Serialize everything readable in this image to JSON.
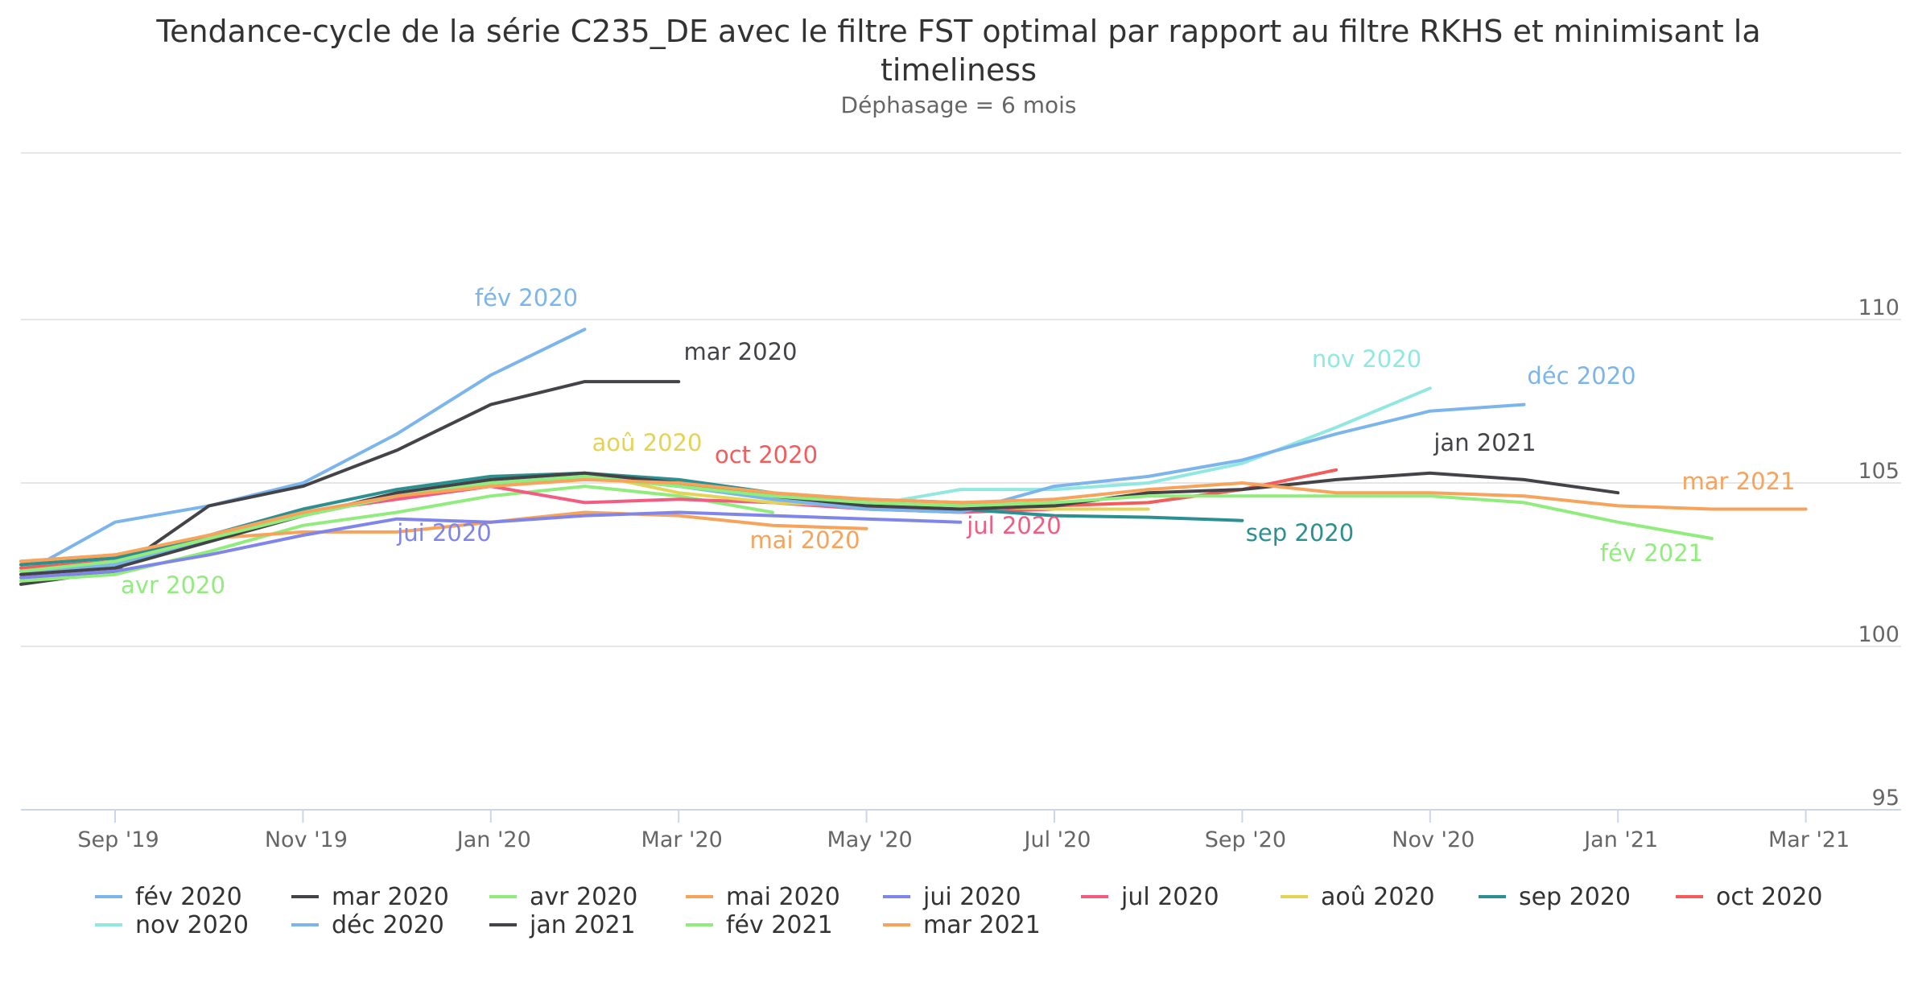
{
  "chart_data": {
    "type": "line",
    "title": "Tendance-cycle de la série C235_DE avec le filtre FST optimal par rapport au filtre RKHS et minimisant la timeliness",
    "subtitle": "Déphasage = 6 mois",
    "ylim": [
      95,
      112
    ],
    "yticks": [
      "95",
      "100",
      "105",
      "110"
    ],
    "x_categories": [
      "2019-08",
      "2019-09",
      "2019-10",
      "2019-11",
      "2019-12",
      "2020-01",
      "2020-02",
      "2020-03",
      "2020-04",
      "2020-05",
      "2020-06",
      "2020-07",
      "2020-08",
      "2020-09",
      "2020-10",
      "2020-11",
      "2020-12",
      "2021-01",
      "2021-02",
      "2021-03",
      "2021-04"
    ],
    "xtick_labels": [
      "Sep '19",
      "Nov '19",
      "Jan '20",
      "Mar '20",
      "May '20",
      "Jul '20",
      "Sep '20",
      "Nov '20",
      "Jan '21",
      "Mar '21"
    ],
    "xtick_months": [
      "2019-09",
      "2019-11",
      "2020-01",
      "2020-03",
      "2020-05",
      "2020-07",
      "2020-09",
      "2020-11",
      "2021-01",
      "2021-03"
    ],
    "grid": true,
    "legend_position": "bottom",
    "series": [
      {
        "name": "fév 2020",
        "color": "#7cb5ec",
        "start": "2019-08",
        "values": [
          102.2,
          103.8,
          104.3,
          105.0,
          106.5,
          108.3,
          109.7
        ]
      },
      {
        "name": "mar 2020",
        "color": "#434348",
        "start": "2019-08",
        "values": [
          101.9,
          102.3,
          104.3,
          104.9,
          106.0,
          107.4,
          108.1,
          108.1
        ]
      },
      {
        "name": "avr 2020",
        "color": "#90ed7d",
        "start": "2019-08",
        "values": [
          102.0,
          102.2,
          102.9,
          103.7,
          104.1,
          104.6,
          104.9,
          104.6,
          104.1
        ]
      },
      {
        "name": "mai 2020",
        "color": "#f7a35c",
        "start": "2019-08",
        "values": [
          102.6,
          102.8,
          103.3,
          103.5,
          103.5,
          103.8,
          104.1,
          104.0,
          103.7,
          103.6
        ]
      },
      {
        "name": "jui 2020",
        "color": "#8085e9",
        "start": "2019-08",
        "values": [
          102.1,
          102.3,
          102.8,
          103.4,
          103.9,
          103.8,
          104.0,
          104.1,
          104.0,
          103.9,
          103.8
        ]
      },
      {
        "name": "jul 2020",
        "color": "#f15c80",
        "start": "2019-08",
        "values": [
          102.3,
          102.5,
          103.2,
          104.1,
          104.5,
          104.9,
          104.4,
          104.5,
          104.4,
          104.2,
          104.1,
          104.2
        ]
      },
      {
        "name": "aoû 2020",
        "color": "#e4d354",
        "start": "2019-08",
        "values": [
          102.5,
          102.8,
          103.4,
          104.0,
          104.6,
          105.1,
          105.3,
          104.7,
          104.4,
          104.3,
          104.3,
          104.2,
          104.2
        ]
      },
      {
        "name": "sep 2020",
        "color": "#2b908f",
        "start": "2019-08",
        "values": [
          102.5,
          102.7,
          103.4,
          104.2,
          104.8,
          105.2,
          105.3,
          105.1,
          104.7,
          104.3,
          104.2,
          104.0,
          103.95,
          103.85
        ]
      },
      {
        "name": "oct 2020",
        "color": "#f45b5b",
        "start": "2019-08",
        "values": [
          102.4,
          102.6,
          103.3,
          104.0,
          104.6,
          105.0,
          105.2,
          105.0,
          104.6,
          104.5,
          104.4,
          104.3,
          104.4,
          104.8,
          105.4
        ]
      },
      {
        "name": "nov 2020",
        "color": "#91e8e1",
        "start": "2019-08",
        "values": [
          102.3,
          102.5,
          103.2,
          104.0,
          104.6,
          105.0,
          105.2,
          104.9,
          104.5,
          104.3,
          104.8,
          104.8,
          105.0,
          105.6,
          106.7,
          107.9
        ]
      },
      {
        "name": "déc 2020",
        "color": "#7cb5ec",
        "start": "2019-08",
        "values": [
          102.3,
          102.5,
          103.3,
          104.0,
          104.6,
          105.0,
          105.2,
          104.9,
          104.5,
          104.2,
          104.1,
          104.9,
          105.2,
          105.7,
          106.5,
          107.2,
          107.4
        ]
      },
      {
        "name": "jan 2021",
        "color": "#434348",
        "start": "2019-08",
        "values": [
          102.2,
          102.4,
          103.2,
          104.0,
          104.7,
          105.1,
          105.3,
          105.0,
          104.6,
          104.3,
          104.2,
          104.3,
          104.7,
          104.8,
          105.1,
          105.3,
          105.1,
          104.7
        ]
      },
      {
        "name": "fév 2021",
        "color": "#90ed7d",
        "start": "2019-08",
        "values": [
          102.3,
          102.6,
          103.3,
          104.0,
          104.6,
          105.0,
          105.2,
          104.9,
          104.6,
          104.4,
          104.3,
          104.4,
          104.6,
          104.6,
          104.6,
          104.6,
          104.4,
          103.8,
          103.3
        ]
      },
      {
        "name": "mar 2021",
        "color": "#f7a35c",
        "start": "2019-08",
        "values": [
          102.6,
          102.8,
          103.4,
          104.1,
          104.6,
          104.9,
          105.1,
          105.0,
          104.7,
          104.5,
          104.4,
          104.5,
          104.8,
          105.0,
          104.7,
          104.7,
          104.6,
          104.3,
          104.2,
          104.2
        ]
      }
    ]
  }
}
